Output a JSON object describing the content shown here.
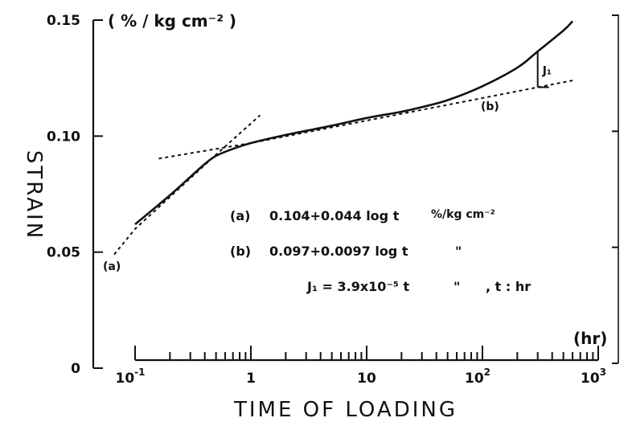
{
  "chart_data": {
    "type": "line",
    "xscale": "log",
    "xlabel": "TIME  OF  LOADING",
    "xunit": "(hr)",
    "ylabel": "STRAIN",
    "yunit": "( % / kg cm⁻² )",
    "xlim": [
      0.1,
      1000
    ],
    "ylim": [
      0,
      0.15
    ],
    "x_ticks": [
      {
        "value": 0.1,
        "base": "10",
        "exp": "-1"
      },
      {
        "value": 1,
        "base": "1",
        "exp": ""
      },
      {
        "value": 10,
        "base": "10",
        "exp": ""
      },
      {
        "value": 100,
        "base": "10",
        "exp": "2"
      },
      {
        "value": 1000,
        "base": "10",
        "exp": "3"
      }
    ],
    "y_ticks": [
      {
        "value": 0,
        "label": "0"
      },
      {
        "value": 0.05,
        "label": "0.05"
      },
      {
        "value": 0.1,
        "label": "0.10"
      },
      {
        "value": 0.15,
        "label": "0.15"
      }
    ],
    "grid": false,
    "series": [
      {
        "kind": "measured",
        "x": [
          0.1,
          0.2,
          0.3,
          0.4,
          0.5,
          0.7,
          1,
          2,
          5,
          10,
          20,
          30,
          50,
          100,
          200,
          300,
          500,
          600
        ],
        "y": [
          0.062,
          0.0745,
          0.0824,
          0.088,
          0.0915,
          0.0945,
          0.097,
          0.1005,
          0.1045,
          0.1078,
          0.1105,
          0.1125,
          0.1155,
          0.1215,
          0.1295,
          0.1365,
          0.1455,
          0.1495
        ]
      },
      {
        "kind": "fit-a",
        "x": [
          0.066,
          0.1,
          0.5,
          1.2
        ],
        "y": [
          0.049,
          0.06,
          0.092,
          0.109
        ]
      },
      {
        "kind": "fit-b",
        "x": [
          0.16,
          1,
          10,
          100,
          600
        ],
        "y": [
          0.0903,
          0.097,
          0.1067,
          0.1164,
          0.124
        ]
      }
    ],
    "annotations": {
      "curve_a_label": "(a)",
      "curve_b_label": "(b)",
      "j1_label": "J₁",
      "j1_at_x": 300,
      "legend": [
        {
          "key": "(a)",
          "formula": "0.104+0.044 log t",
          "unit": "%/kg cm⁻²"
        },
        {
          "key": "(b)",
          "formula": "0.097+0.0097 log t",
          "unit": "\""
        },
        {
          "key": "",
          "formula": "J₁ = 3.9x10⁻⁵ t",
          "unit": "\"",
          "extra": ",  t : hr"
        }
      ]
    }
  }
}
